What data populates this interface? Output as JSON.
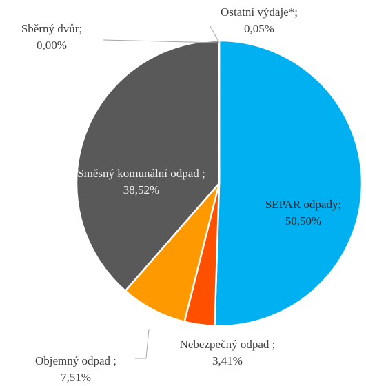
{
  "chart_data": {
    "type": "pie",
    "categories": [
      "SEPAR odpady;",
      "Nebezpečný odpad ;",
      "Objemný odpad ;",
      "Směsný komunální odpad ;",
      "Sběrný dvůr;",
      "Ostatní výdaje*;"
    ],
    "values": [
      50.5,
      3.41,
      7.51,
      38.52,
      0.0,
      0.05
    ],
    "value_labels": [
      "50,50%",
      "3,41%",
      "7,51%",
      "38,52%",
      "0,00%",
      "0,05%"
    ],
    "colors": [
      "#00b0f0",
      "#ff5000",
      "#ff9900",
      "#595959",
      "#a5a5a5",
      "#4472c4"
    ]
  }
}
